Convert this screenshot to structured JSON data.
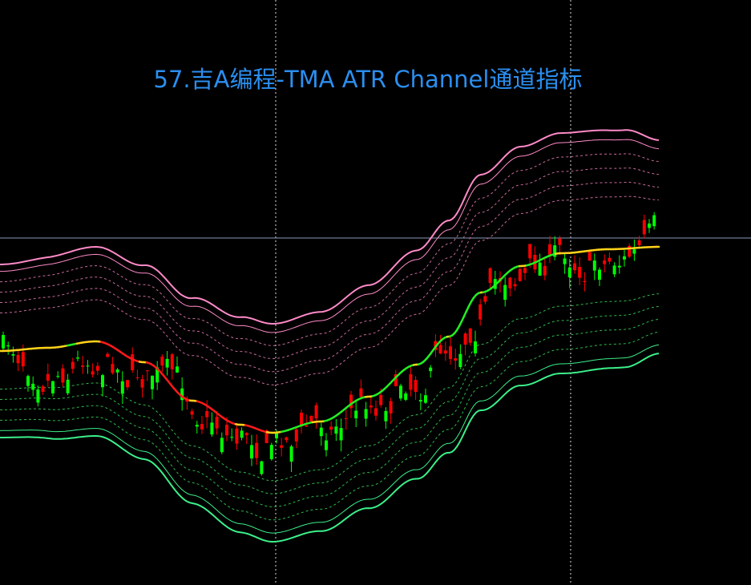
{
  "header": {
    "title": "57.吉A编程-TMA ATR Channel通道指标"
  }
}
